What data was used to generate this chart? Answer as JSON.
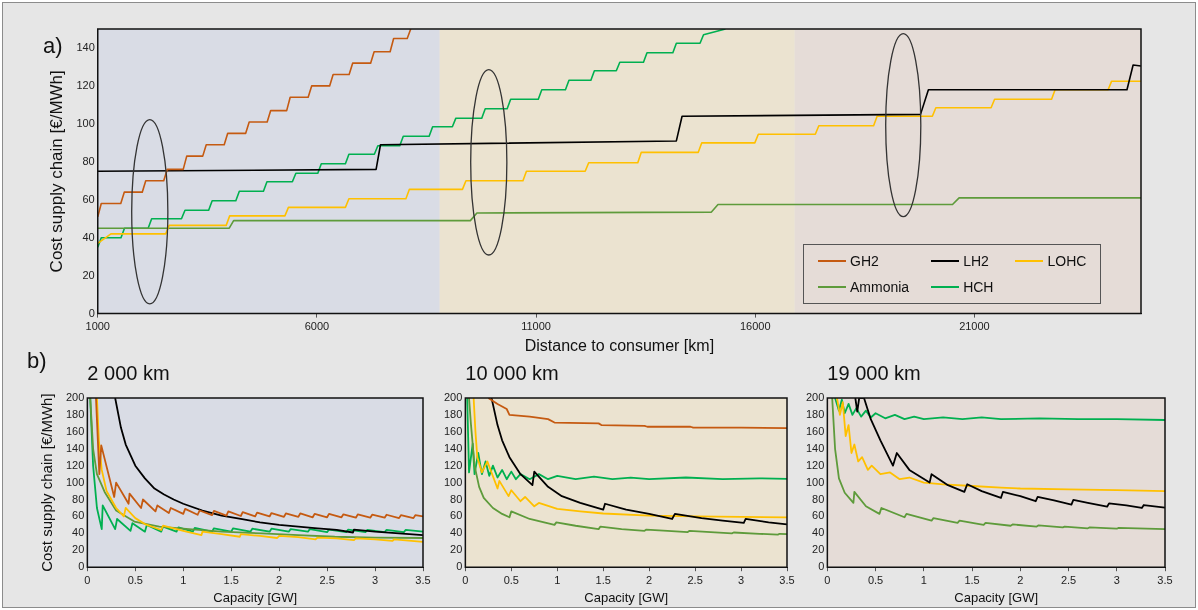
{
  "chart_data": [
    {
      "type": "line",
      "xlabel": "Distance to consumer [km]",
      "ylabel": "Cost supply chain [€/MWh]",
      "annotations": [
        "a)"
      ],
      "xlim": [
        1000,
        24800
      ],
      "xticks": [
        1000,
        6000,
        11000,
        16000,
        21000
      ],
      "ylim": [
        0,
        150
      ],
      "yticks": [
        0,
        20,
        40,
        60,
        80,
        100,
        120,
        140
      ],
      "legend": "bottom right",
      "bands": [
        {
          "axis": "x",
          "from": 1000,
          "to": 8800,
          "color": "#d9dce5"
        },
        {
          "axis": "x",
          "from": 8800,
          "to": 16900,
          "color": "#ebe3d0"
        },
        {
          "axis": "x",
          "from": 16900,
          "to": 24800,
          "color": "#e5dcd7"
        }
      ],
      "series": [
        {
          "name": "GH2",
          "color": "#c55a11",
          "x": [
            1000,
            1080,
            1525,
            1605,
            2015,
            2095,
            2505,
            2585,
            2950,
            3030,
            3395,
            3475,
            3885,
            3965,
            4375,
            4455,
            4865,
            4945,
            5310,
            5390,
            5800,
            5880,
            6290,
            6370,
            6735,
            6815,
            7225,
            7305,
            7670,
            7750,
            8060,
            8140
          ],
          "values": [
            51,
            58,
            58,
            64,
            64,
            70,
            70,
            76,
            76,
            83,
            83,
            89,
            89,
            95,
            95,
            101,
            101,
            107,
            107,
            114,
            114,
            120,
            120,
            126,
            126,
            132,
            132,
            138,
            138,
            145,
            145,
            150
          ]
        },
        {
          "name": "LH2",
          "color": "#000000",
          "x": [
            1000,
            7350,
            7450,
            14200,
            14330,
            19770,
            19950,
            24480,
            24620,
            24800
          ],
          "values": [
            75,
            76,
            89,
            91,
            104,
            105,
            118,
            118,
            131,
            130.5
          ]
        },
        {
          "name": "LOHC",
          "color": "#ffc000",
          "x": [
            1000,
            1300,
            2550,
            2630,
            3930,
            4010,
            5270,
            5350,
            6650,
            6730,
            8030,
            8110,
            9320,
            9400,
            10700,
            10780,
            12120,
            12200,
            13320,
            13400,
            14700,
            14780,
            15990,
            16070,
            17370,
            17450,
            18700,
            18780,
            20040,
            20120,
            21380,
            21460,
            22760,
            22840,
            24050,
            24130,
            24800
          ],
          "values": [
            37,
            42,
            42,
            46.5,
            46.5,
            51.5,
            51.5,
            56,
            56,
            60.5,
            60.5,
            65.5,
            65.5,
            70,
            70,
            75,
            75,
            79.5,
            79.5,
            85,
            85,
            90,
            90,
            94.5,
            94.5,
            99,
            99,
            104,
            104,
            108.5,
            108.5,
            113,
            113,
            118,
            118,
            122.5,
            122.5
          ]
        },
        {
          "name": "Ammonia",
          "color": "#5e9b3b",
          "x": [
            1000,
            4000,
            4100,
            9500,
            9650,
            15000,
            15150,
            20500,
            20650,
            24800
          ],
          "values": [
            45,
            45,
            49,
            49,
            53,
            53.5,
            57.5,
            57.5,
            61,
            61
          ]
        },
        {
          "name": "HCH",
          "color": "#00b050",
          "x": [
            1000,
            1080,
            1530,
            1610,
            2150,
            2230,
            2910,
            2990,
            3530,
            3610,
            4150,
            4230,
            4780,
            4860,
            5440,
            5520,
            6020,
            6100,
            6650,
            6730,
            7310,
            7390,
            7890,
            7970,
            8560,
            8640,
            9090,
            9170,
            9760,
            9840,
            10340,
            10420,
            11050,
            11130,
            11670,
            11750,
            12250,
            12330,
            12830,
            12910,
            13450,
            13530,
            14120,
            14200,
            14740,
            14820,
            15320
          ],
          "values": [
            35,
            40,
            40,
            45,
            45,
            50,
            50,
            54.5,
            54.5,
            59.5,
            59.5,
            64.5,
            64.5,
            69.5,
            69.5,
            74,
            74,
            79,
            79,
            84,
            84,
            88.5,
            88.5,
            93.5,
            93.5,
            98.5,
            98.5,
            103,
            103,
            108,
            108,
            113,
            113,
            118,
            118,
            123,
            123,
            128,
            128,
            132.5,
            132.5,
            137.5,
            137.5,
            142.5,
            142.5,
            147,
            150
          ]
        }
      ]
    },
    {
      "type": "line",
      "title": "2 000 km",
      "xlabel": "Capacity [GW]",
      "ylabel": "Cost supply chain [€/MWh]",
      "annotations": [
        "b)"
      ],
      "xlim": [
        0,
        3.5
      ],
      "xticks": [
        0,
        0.5,
        1,
        1.5,
        2,
        2.5,
        3,
        3.5
      ],
      "ylim": [
        0,
        200
      ],
      "yticks": [
        0,
        20,
        40,
        60,
        80,
        100,
        120,
        140,
        160,
        180,
        200
      ],
      "bands": [
        {
          "axis": "x",
          "from": 0,
          "to": 3.5,
          "color": "#d9dce5"
        }
      ],
      "series": [
        {
          "color": "#c55a11",
          "x": [
            0.09,
            0.125,
            0.145,
            0.28,
            0.3,
            0.43,
            0.44,
            0.56,
            0.58,
            0.71,
            0.73,
            0.85,
            0.87,
            1.0,
            1.02,
            1.15,
            1.17,
            1.3,
            1.32,
            1.45,
            1.47,
            1.6,
            1.62,
            1.75,
            1.77,
            1.9,
            1.92,
            2.05,
            2.07,
            2.2,
            2.22,
            2.35,
            2.37,
            2.5,
            2.52,
            2.65,
            2.67,
            2.8,
            2.82,
            2.95,
            2.97,
            3.1,
            3.12,
            3.25,
            3.27,
            3.4,
            3.42,
            3.5
          ],
          "values": [
            200,
            110,
            144,
            83,
            100,
            75,
            87,
            70,
            80,
            66,
            73,
            64,
            70,
            63,
            69,
            62,
            67,
            61.5,
            66.5,
            61,
            66,
            60.5,
            65,
            60,
            64.5,
            60,
            64,
            59.5,
            63.5,
            59.5,
            63.5,
            59,
            63,
            59,
            63,
            59,
            62.5,
            58.5,
            62.5,
            58.5,
            62,
            58.5,
            62,
            58,
            61.5,
            58,
            61.5,
            60
          ]
        },
        {
          "color": "#000000",
          "x": [
            0.29,
            0.35,
            0.4,
            0.5,
            0.6,
            0.7,
            0.8,
            0.9,
            1.0,
            1.2,
            1.4,
            1.6,
            1.8,
            2.0,
            2.2,
            2.4,
            2.6,
            2.77,
            2.78,
            3.0,
            3.25,
            3.5
          ],
          "values": [
            200,
            165,
            145,
            120,
            105,
            93,
            86,
            80,
            75,
            67,
            61,
            57,
            53,
            50,
            48,
            46,
            44,
            41,
            44.5,
            42,
            40,
            38
          ]
        },
        {
          "color": "#ffc000",
          "x": [
            0.1,
            0.12,
            0.15,
            0.2,
            0.3,
            0.38,
            0.4,
            0.5,
            0.6,
            0.77,
            0.79,
            1.0,
            1.19,
            1.2,
            1.4,
            1.59,
            1.6,
            1.8,
            1.98,
            2.0,
            2.2,
            2.38,
            2.4,
            2.6,
            2.78,
            2.8,
            3.0,
            3.18,
            3.2,
            3.5
          ],
          "values": [
            200,
            150,
            115,
            90,
            70,
            60,
            70,
            58,
            51,
            44,
            49,
            43,
            38,
            42,
            39,
            36,
            39,
            37,
            34.5,
            37,
            35.5,
            33,
            35,
            34,
            32,
            34,
            33,
            31,
            33,
            30
          ]
        },
        {
          "color": "#5e9b3b",
          "x": [
            0.03,
            0.06,
            0.1,
            0.18,
            0.3,
            0.49,
            0.75,
            1.06,
            1.4,
            1.82,
            2.2,
            2.58,
            3.0,
            3.5
          ],
          "values": [
            200,
            140,
            110,
            89,
            67,
            54,
            48,
            45,
            42,
            40,
            38,
            36,
            35,
            34.5
          ]
        },
        {
          "color": "#00b050",
          "x": [
            0.03,
            0.06,
            0.1,
            0.15,
            0.16,
            0.29,
            0.31,
            0.45,
            0.47,
            0.6,
            0.62,
            0.77,
            0.79,
            0.93,
            0.95,
            1.1,
            1.12,
            1.3,
            1.32,
            1.5,
            1.52,
            1.7,
            1.72,
            1.9,
            1.92,
            2.1,
            2.12,
            2.3,
            2.32,
            2.5,
            2.52,
            2.7,
            2.72,
            2.9,
            2.92,
            3.1,
            3.12,
            3.3,
            3.32,
            3.5
          ],
          "values": [
            200,
            120,
            70,
            45,
            73,
            45,
            57,
            43,
            52,
            42,
            50,
            42,
            48,
            42,
            47,
            42,
            46.5,
            42,
            46,
            42,
            46,
            42,
            45.5,
            42,
            45.5,
            42,
            45,
            42,
            45,
            41.5,
            44.5,
            41.5,
            44.5,
            41.5,
            44,
            41.5,
            44,
            41.5,
            44,
            42
          ]
        }
      ]
    },
    {
      "type": "line",
      "title": "10 000 km",
      "xlabel": "Capacity [GW]",
      "xlim": [
        0,
        3.5
      ],
      "xticks": [
        0,
        0.5,
        1,
        1.5,
        2,
        2.5,
        3,
        3.5
      ],
      "ylim": [
        0,
        200
      ],
      "yticks": [
        0,
        20,
        40,
        60,
        80,
        100,
        120,
        140,
        160,
        180,
        200
      ],
      "bands": [
        {
          "axis": "x",
          "from": 0,
          "to": 3.5,
          "color": "#ebe3d0"
        }
      ],
      "series": [
        {
          "color": "#c55a11",
          "x": [
            0.25,
            0.35,
            0.45,
            0.48,
            0.7,
            0.9,
            0.97,
            1.45,
            1.48,
            1.95,
            1.98,
            2.45,
            2.48,
            3.0,
            3.5
          ],
          "values": [
            200,
            193,
            187,
            180,
            178,
            175,
            171,
            170,
            168,
            167,
            166,
            166,
            165,
            165,
            164.5
          ]
        },
        {
          "color": "#000000",
          "x": [
            0.285,
            0.35,
            0.4,
            0.48,
            0.6,
            0.73,
            0.75,
            0.9,
            1.05,
            1.25,
            1.5,
            1.52,
            1.75,
            2.0,
            2.25,
            2.28,
            2.57,
            2.8,
            3.03,
            3.05,
            3.3,
            3.5
          ],
          "values": [
            200,
            168,
            150,
            130,
            110,
            97,
            113,
            95,
            84,
            76,
            68,
            75,
            68,
            63,
            57,
            63,
            58,
            55,
            52.5,
            57,
            53,
            50.5
          ]
        },
        {
          "color": "#ffc000",
          "x": [
            0.09,
            0.11,
            0.13,
            0.18,
            0.24,
            0.35,
            0.37,
            0.47,
            0.5,
            0.6,
            0.65,
            0.75,
            0.8,
            1.0,
            1.25,
            1.5,
            2.0,
            2.5,
            3.0,
            3.5
          ],
          "values": [
            200,
            160,
            130,
            112,
            125,
            93,
            102,
            84,
            91,
            78,
            83,
            72,
            76,
            69,
            66,
            63.5,
            61,
            60,
            59.5,
            59
          ]
        },
        {
          "color": "#5e9b3b",
          "x": [
            0.04,
            0.06,
            0.1,
            0.15,
            0.2,
            0.3,
            0.4,
            0.48,
            0.5,
            0.7,
            0.97,
            0.99,
            1.2,
            1.45,
            1.47,
            1.7,
            1.95,
            1.97,
            2.2,
            2.42,
            2.44,
            2.9,
            2.92,
            3.2,
            3.4,
            3.42,
            3.5
          ],
          "values": [
            200,
            170,
            120,
            95,
            82,
            70,
            63,
            59,
            66,
            57,
            50,
            53,
            49,
            45,
            48,
            45,
            43,
            44.5,
            43,
            41.5,
            43,
            40,
            41,
            39.5,
            38.5,
            39.5,
            39
          ]
        },
        {
          "color": "#00b050",
          "x": [
            0.02,
            0.04,
            0.08,
            0.1,
            0.14,
            0.18,
            0.22,
            0.26,
            0.3,
            0.35,
            0.4,
            0.45,
            0.5,
            0.55,
            0.6,
            0.7,
            0.8,
            0.9,
            1.0,
            1.2,
            1.4,
            1.6,
            1.8,
            2.0,
            2.4,
            2.8,
            3.2,
            3.5
          ],
          "values": [
            200,
            112,
            146,
            110,
            135,
            110,
            125,
            108,
            120,
            106,
            115,
            104,
            113,
            104,
            110,
            104,
            110,
            104,
            108,
            104,
            107,
            104,
            106,
            104,
            106,
            104,
            105,
            104.5
          ]
        }
      ]
    },
    {
      "type": "line",
      "title": "19 000 km",
      "xlabel": "Capacity [GW]",
      "xlim": [
        0,
        3.5
      ],
      "xticks": [
        0,
        0.5,
        1,
        1.5,
        2,
        2.5,
        3,
        3.5
      ],
      "ylim": [
        0,
        200
      ],
      "yticks": [
        0,
        20,
        40,
        60,
        80,
        100,
        120,
        140,
        160,
        180,
        200
      ],
      "bands": [
        {
          "axis": "x",
          "from": 0,
          "to": 3.5,
          "color": "#e5dcd7"
        }
      ],
      "series": [
        {
          "color": "#000000",
          "x": [
            0.29,
            0.31,
            0.33,
            0.38,
            0.45,
            0.55,
            0.68,
            0.72,
            0.85,
            1.06,
            1.08,
            1.25,
            1.42,
            1.45,
            1.6,
            1.8,
            1.82,
            2.0,
            2.16,
            2.18,
            2.35,
            2.53,
            2.55,
            2.7,
            2.9,
            2.92,
            3.1,
            3.26,
            3.28,
            3.5
          ],
          "values": [
            200,
            184,
            200,
            200,
            175,
            150,
            120,
            135,
            115,
            100,
            110,
            97,
            89,
            98,
            90,
            82,
            89,
            84,
            78,
            83,
            79,
            74,
            79.5,
            76,
            71.5,
            75.5,
            73,
            70,
            73.5,
            70.5
          ]
        },
        {
          "color": "#ffc000",
          "x": [
            0.1,
            0.13,
            0.16,
            0.19,
            0.22,
            0.25,
            0.28,
            0.32,
            0.36,
            0.42,
            0.46,
            0.55,
            0.65,
            0.75,
            0.85,
            1.0,
            1.2,
            1.5,
            1.8,
            2.0,
            2.5,
            3.0,
            3.5
          ],
          "values": [
            200,
            180,
            195,
            155,
            168,
            135,
            145,
            125,
            130,
            115,
            120,
            110,
            112,
            104,
            106,
            100,
            98,
            96,
            94,
            93,
            92,
            91,
            90
          ]
        },
        {
          "color": "#5e9b3b",
          "x": [
            0.05,
            0.08,
            0.12,
            0.18,
            0.27,
            0.28,
            0.4,
            0.54,
            0.56,
            0.8,
            0.82,
            1.08,
            1.1,
            1.35,
            1.37,
            1.62,
            1.64,
            1.9,
            1.92,
            2.17,
            2.19,
            2.44,
            2.46,
            2.7,
            2.72,
            3.0,
            3.02,
            3.5
          ],
          "values": [
            200,
            140,
            105,
            88,
            76,
            89,
            72,
            63,
            70,
            59,
            63,
            55,
            58,
            52.5,
            55,
            50,
            52.5,
            49,
            50.5,
            48,
            49.5,
            47,
            48,
            46,
            47,
            45.5,
            46.5,
            45
          ]
        },
        {
          "color": "#00b050",
          "x": [
            0.08,
            0.12,
            0.15,
            0.18,
            0.22,
            0.26,
            0.3,
            0.35,
            0.4,
            0.45,
            0.5,
            0.6,
            0.7,
            0.8,
            0.9,
            1.0,
            1.2,
            1.4,
            1.6,
            1.8,
            2.2,
            2.6,
            3.0,
            3.5
          ],
          "values": [
            200,
            185,
            198,
            182,
            193,
            180,
            188,
            178,
            185,
            177,
            182,
            176,
            180,
            175,
            178,
            175,
            177,
            175,
            177,
            175,
            176,
            175,
            175,
            174
          ]
        }
      ]
    }
  ]
}
